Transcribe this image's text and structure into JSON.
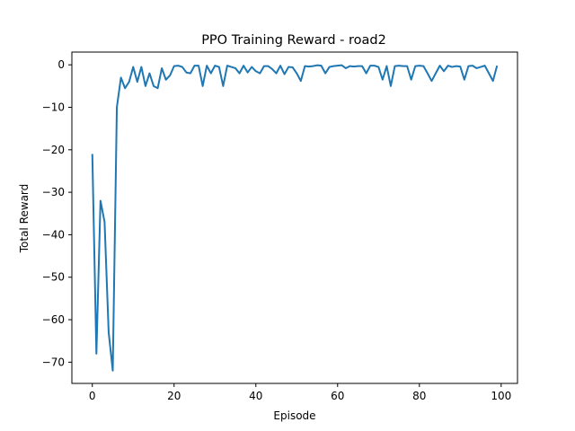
{
  "chart_data": {
    "type": "line",
    "title": "PPO Training Reward - road2",
    "xlabel": "Episode",
    "ylabel": "Total Reward",
    "xlim": [
      -5,
      104
    ],
    "ylim": [
      -75,
      3
    ],
    "xticks": [
      0,
      20,
      40,
      60,
      80,
      100
    ],
    "yticks": [
      0,
      -10,
      -20,
      -30,
      -40,
      -50,
      -60,
      -70
    ],
    "grid": false,
    "line_color": "#1f77b4",
    "series": [
      {
        "x": [
          0,
          1,
          2,
          3,
          4,
          5,
          6,
          7,
          8,
          9,
          10,
          11,
          12,
          13,
          14,
          15,
          16,
          17,
          18,
          19,
          20,
          21,
          22,
          23,
          24,
          25,
          26,
          27,
          28,
          29,
          30,
          31,
          32,
          33,
          34,
          35,
          36,
          37,
          38,
          39,
          40,
          41,
          42,
          43,
          44,
          45,
          46,
          47,
          48,
          49,
          50,
          51,
          52,
          53,
          54,
          55,
          56,
          57,
          58,
          59,
          60,
          61,
          62,
          63,
          64,
          65,
          66,
          67,
          68,
          69,
          70,
          71,
          72,
          73,
          74,
          75,
          76,
          77,
          78,
          79,
          80,
          81,
          82,
          83,
          84,
          85,
          86,
          87,
          88,
          89,
          90,
          91,
          92,
          93,
          94,
          95,
          96,
          97,
          98,
          99
        ],
        "values": [
          -21,
          -68,
          -32,
          -37,
          -63,
          -72,
          -10,
          -3,
          -5.5,
          -4,
          -0.5,
          -4,
          -0.5,
          -5,
          -2,
          -5,
          -5.5,
          -0.8,
          -3.5,
          -2.5,
          -0.3,
          -0.2,
          -0.5,
          -1.8,
          -2,
          -0.2,
          -0.2,
          -5,
          -0.2,
          -2,
          -0.2,
          -0.5,
          -5,
          -0.2,
          -0.5,
          -0.8,
          -2,
          -0.2,
          -1.8,
          -0.5,
          -1.5,
          -2,
          -0.3,
          -0.3,
          -1,
          -2,
          -0.2,
          -2.2,
          -0.5,
          -0.6,
          -2,
          -3.8,
          -0.3,
          -0.4,
          -0.3,
          -0.1,
          -0.2,
          -2,
          -0.5,
          -0.3,
          -0.2,
          -0.1,
          -0.8,
          -0.3,
          -0.4,
          -0.3,
          -0.3,
          -2,
          -0.2,
          -0.2,
          -0.5,
          -3.5,
          -0.3,
          -5,
          -0.3,
          -0.2,
          -0.3,
          -0.3,
          -3.5,
          -0.3,
          -0.2,
          -0.3,
          -2,
          -3.8,
          -2,
          -0.2,
          -1.5,
          -0.2,
          -0.5,
          -0.3,
          -0.4,
          -3.5,
          -0.3,
          -0.2,
          -0.8,
          -0.5,
          -0.2,
          -2,
          -3.8,
          -0.2
        ]
      }
    ]
  }
}
